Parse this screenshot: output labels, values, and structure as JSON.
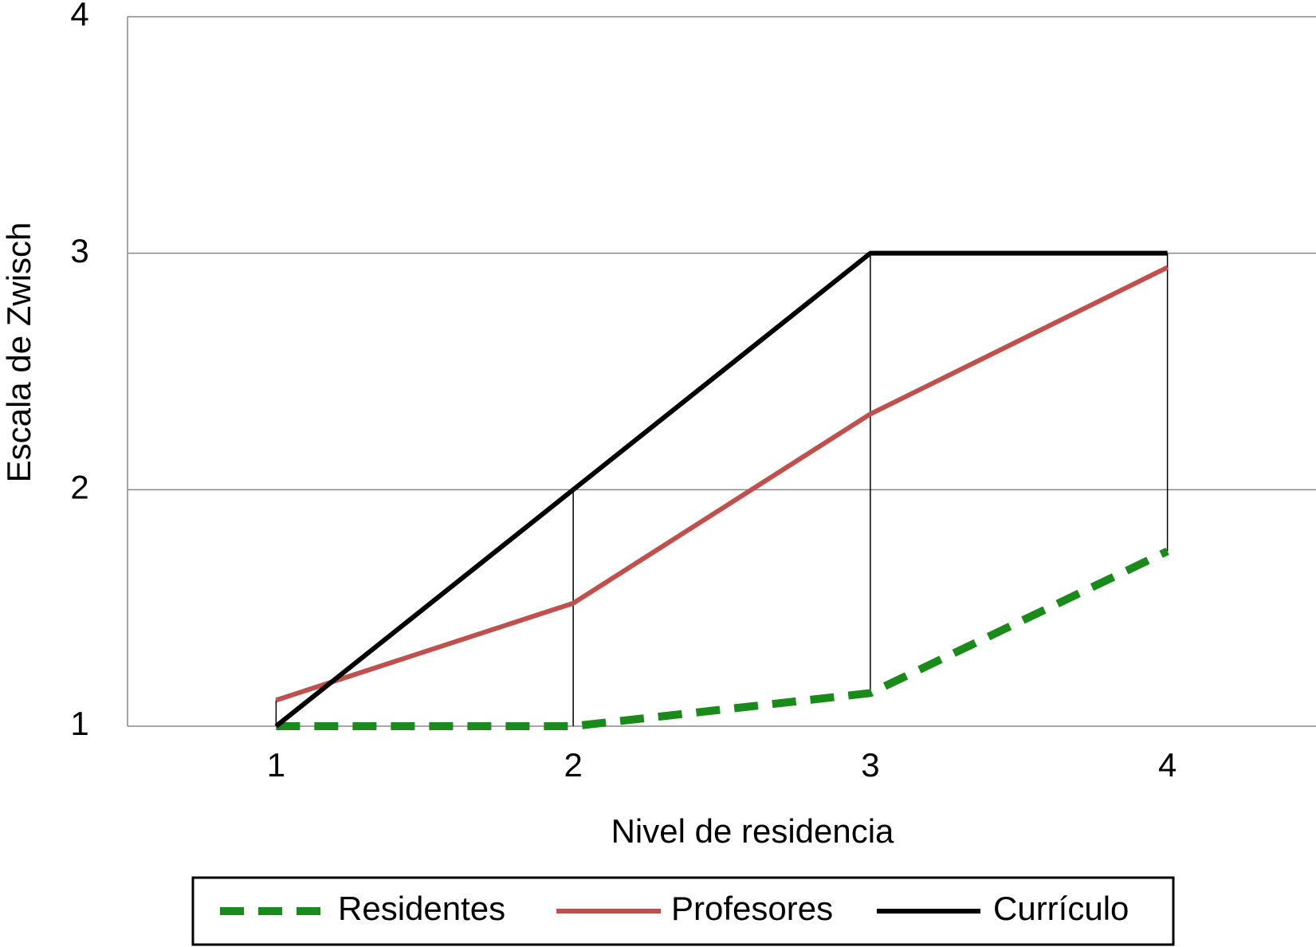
{
  "chart_data": {
    "type": "line",
    "x_label": "Nivel de residencia",
    "y_label": "Escala de Zwisch",
    "x": [
      1,
      2,
      3,
      4
    ],
    "xlim": [
      0.5,
      4.5
    ],
    "xticks": [
      1,
      2,
      3,
      4
    ],
    "ylim": [
      1,
      4
    ],
    "yticks": [
      1,
      2,
      3,
      4
    ],
    "grid": true,
    "legend": "bottom",
    "series": [
      {
        "name": "Residentes",
        "color": "#1a8a1a",
        "dashed": true,
        "values": [
          1,
          1,
          1.14,
          1.74
        ]
      },
      {
        "name": "Profesores",
        "color": "#c0504d",
        "dashed": false,
        "values": [
          1.11,
          1.52,
          2.32,
          2.94
        ]
      },
      {
        "name": "Currículo",
        "color": "#000000",
        "dashed": false,
        "values": [
          1,
          2,
          3,
          3
        ]
      }
    ]
  }
}
